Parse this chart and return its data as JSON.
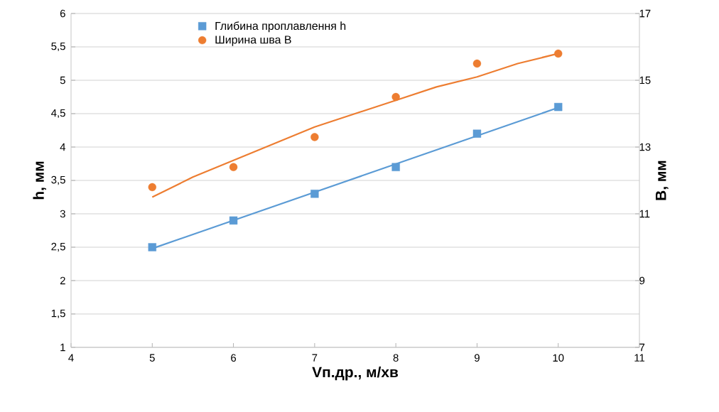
{
  "chart_data": {
    "type": "scatter",
    "xlabel": "Vп.др., м/хв",
    "ylabel": "h, мм",
    "y2label": "B, мм",
    "xlim": [
      4,
      11
    ],
    "xticks": [
      4,
      5,
      6,
      7,
      8,
      9,
      10,
      11
    ],
    "ylim": [
      1,
      6
    ],
    "yticks": [
      1,
      {
        "value": 1.5,
        "label": "1,5"
      },
      2,
      {
        "value": 2.5,
        "label": "2,5"
      },
      3,
      {
        "value": 3.5,
        "label": "3,5"
      },
      4,
      {
        "value": 4.5,
        "label": "4,5"
      },
      5,
      {
        "value": 5.5,
        "label": "5,5"
      },
      6
    ],
    "y2lim": [
      7,
      17
    ],
    "y2ticks": [
      7,
      9,
      11,
      13,
      15,
      17
    ],
    "grid": "y",
    "legend": "top",
    "series": [
      {
        "name": "Глибина проплавлення h",
        "marker": "square",
        "color": "#5b9bd5",
        "x": [
          5,
          6,
          7,
          8,
          9,
          10
        ],
        "values": [
          2.5,
          2.9,
          3.3,
          3.7,
          4.2,
          4.6
        ]
      },
      {
        "name": "Ширина шва B",
        "marker": "circle",
        "color": "#ed7d31",
        "axis": "y2",
        "x": [
          5,
          6,
          7,
          8,
          9,
          10
        ],
        "values": [
          11.8,
          12.4,
          13.3,
          14.5,
          15.5,
          15.8
        ]
      },
      {
        "type": "line",
        "marker": "none",
        "color": "#5b9bd5",
        "x": [
          5,
          10
        ],
        "values": [
          2.48,
          4.59
        ]
      },
      {
        "type": "line",
        "marker": "none",
        "color": "#ed7d31",
        "axis": "y2",
        "x": [
          5,
          5.5,
          6,
          6.5,
          7,
          7.5,
          8,
          8.5,
          9,
          9.5,
          10
        ],
        "values": [
          11.5,
          12.1,
          12.6,
          13.1,
          13.6,
          14.0,
          14.4,
          14.8,
          15.1,
          15.5,
          15.8
        ]
      }
    ]
  }
}
